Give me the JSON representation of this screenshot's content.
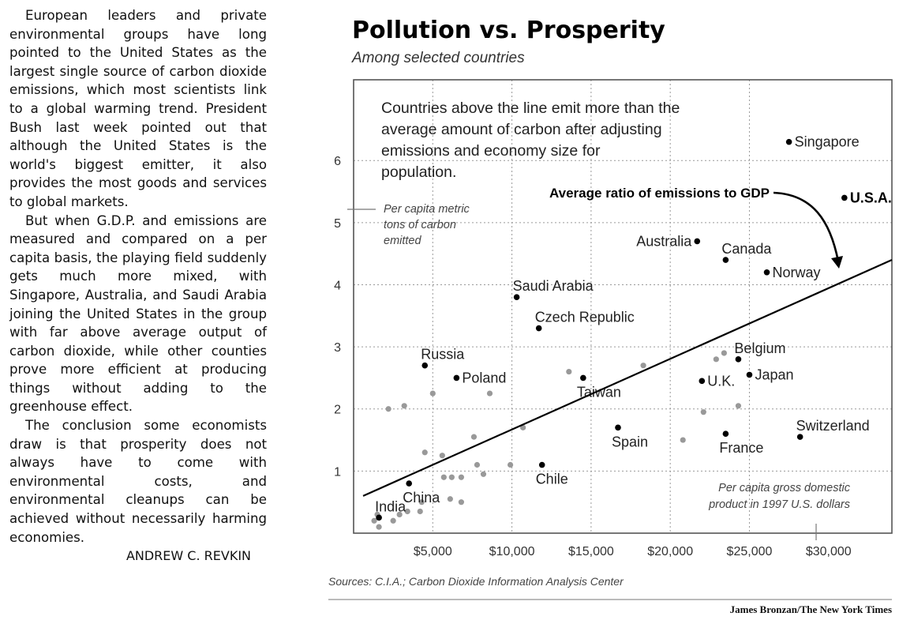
{
  "article": {
    "paragraphs": [
      "European leaders and private environmental groups have long pointed to the United States as the largest single source of carbon dioxide emissions, which most scientists link to a global warming trend. President Bush last week pointed out that although the United States is the world's biggest emitter, it also provides the most goods and services to global markets.",
      "But when G.D.P. and emissions are measured and compared on a per capita basis, the playing field suddenly gets much more mixed, with Singapore, Australia, and Saudi Arabia joining the United States in the group with far above average output of carbon dioxide, while other counties prove more efficient at producing things without adding to the greenhouse effect.",
      "The conclusion some economists draw is that prosperity does not always have to come with environmental costs, and environmental cleanups can be achieved without necessarily harming economies."
    ],
    "byline": "ANDREW C. REVKIN"
  },
  "chart_data": {
    "type": "scatter",
    "title": "Pollution vs. Prosperity",
    "subtitle": "Among selected countries",
    "annotation": [
      "Countries above the line emit more than the",
      "average amount of carbon after adjusting",
      "emissions and economy size for",
      "population."
    ],
    "ylabel": [
      "Per capita metric",
      "tons of carbon",
      "emitted"
    ],
    "xlabel": [
      "Per capita gross domestic",
      "product in 1997 U.S. dollars"
    ],
    "xlim": [
      0,
      34000
    ],
    "ylim": [
      0,
      7.3
    ],
    "x_ticks": [
      5000,
      10000,
      15000,
      20000,
      25000,
      30000
    ],
    "x_tick_labels": [
      "$5,000",
      "$10,000",
      "$15,000",
      "$20,000",
      "$25,000",
      "$30,000"
    ],
    "y_ticks": [
      1,
      2,
      3,
      4,
      5,
      6
    ],
    "y_tick_labels": [
      "1",
      "2",
      "3",
      "4",
      "5",
      "6"
    ],
    "grid": "dotted",
    "trendline": {
      "label": "Average ratio of emissions to GDP",
      "x": [
        600,
        34000
      ],
      "y": [
        0.6,
        4.4
      ]
    },
    "labeled_points": [
      {
        "name": "Singapore",
        "x": 27500,
        "y": 6.3,
        "side": "right"
      },
      {
        "name": "U.S.A.",
        "x": 31000,
        "y": 5.4,
        "side": "right",
        "bold": true
      },
      {
        "name": "Australia",
        "x": 21700,
        "y": 4.7,
        "side": "left"
      },
      {
        "name": "Canada",
        "x": 23500,
        "y": 4.4,
        "side": "above"
      },
      {
        "name": "Norway",
        "x": 26100,
        "y": 4.2,
        "side": "right"
      },
      {
        "name": "Saudi Arabia",
        "x": 10300,
        "y": 3.8,
        "side": "above"
      },
      {
        "name": "Czech Republic",
        "x": 11700,
        "y": 3.3,
        "side": "above"
      },
      {
        "name": "Russia",
        "x": 4500,
        "y": 2.7,
        "side": "above"
      },
      {
        "name": "Poland",
        "x": 6500,
        "y": 2.5,
        "side": "right"
      },
      {
        "name": "Taiwan",
        "x": 14500,
        "y": 2.5,
        "side": "below"
      },
      {
        "name": "Belgium",
        "x": 24300,
        "y": 2.8,
        "side": "above"
      },
      {
        "name": "Japan",
        "x": 25000,
        "y": 2.55,
        "side": "right"
      },
      {
        "name": "U.K.",
        "x": 22000,
        "y": 2.45,
        "side": "right"
      },
      {
        "name": "Spain",
        "x": 16700,
        "y": 1.7,
        "side": "below"
      },
      {
        "name": "France",
        "x": 23500,
        "y": 1.6,
        "side": "below"
      },
      {
        "name": "Switzerland",
        "x": 28200,
        "y": 1.55,
        "side": "above"
      },
      {
        "name": "Chile",
        "x": 11900,
        "y": 1.1,
        "side": "below"
      },
      {
        "name": "China",
        "x": 3500,
        "y": 0.8,
        "side": "below"
      },
      {
        "name": "India",
        "x": 1600,
        "y": 0.25,
        "side": "above"
      }
    ],
    "other_points": {
      "x": [
        2200,
        3200,
        4500,
        5000,
        5600,
        7600,
        8600,
        13600,
        18300,
        22900,
        23400,
        9900,
        6200,
        7800,
        10700,
        5700,
        6800,
        8200,
        4300,
        6100,
        6800,
        4200,
        1300,
        1600,
        2500,
        3400,
        2900,
        1500,
        22100,
        24300,
        20800
      ],
      "y": [
        2.0,
        2.05,
        1.3,
        2.25,
        1.25,
        1.55,
        2.25,
        2.6,
        2.7,
        2.8,
        2.9,
        1.1,
        0.9,
        1.1,
        1.7,
        0.9,
        0.9,
        0.95,
        0.5,
        0.55,
        0.5,
        0.35,
        0.2,
        0.1,
        0.2,
        0.35,
        0.3,
        0.3,
        1.95,
        2.05,
        1.5
      ]
    },
    "sources": "Sources: C.I.A.; Carbon Dioxide Information Analysis Center",
    "credit": "James Bronzan/The New York Times"
  }
}
